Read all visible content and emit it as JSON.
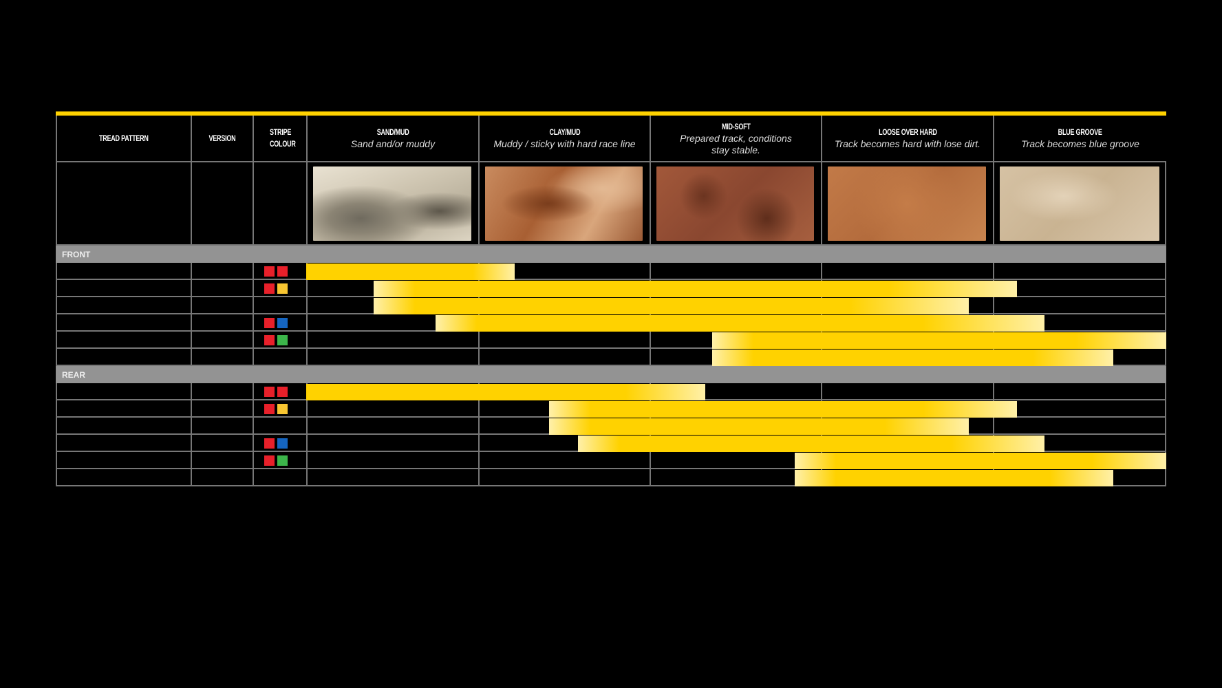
{
  "chart_data": {
    "type": "table",
    "columns": [
      {
        "title": "TREAD PATTERN",
        "subtitle": ""
      },
      {
        "title": "VERSION",
        "subtitle": ""
      },
      {
        "title": "STRIPE COLOUR",
        "subtitle": ""
      },
      {
        "title": "SAND/MUD",
        "subtitle": "Sand and/or muddy"
      },
      {
        "title": "CLAY/MUD",
        "subtitle": "Muddy / sticky with hard race line"
      },
      {
        "title": "MID-SOFT",
        "subtitle": "Prepared track, conditions stay stable."
      },
      {
        "title": "LOOSE OVER HARD",
        "subtitle": "Track becomes hard with lose dirt."
      },
      {
        "title": "BLUE GROOVE",
        "subtitle": "Track becomes blue groove"
      }
    ],
    "terrain_images": [
      "sand",
      "clay-mud",
      "mid-soft-soil",
      "loose-dirt",
      "blue-groove-clay"
    ],
    "range_unit": "terrain columns from SAND/MUD (0) to BLUE GROOVE end (5)",
    "colors": {
      "accent": "#ffd200",
      "band": "#939393",
      "red": "#e8202a",
      "yellow": "#f7c531",
      "blue": "#1565c0",
      "green": "#3cb54a"
    },
    "sections": [
      {
        "label": "FRONT",
        "rows": [
          {
            "stripe": [
              "red",
              "red"
            ],
            "range": [
              0,
              1.21
            ]
          },
          {
            "stripe": [
              "red",
              "yellow"
            ],
            "range": [
              0.39,
              4.13
            ]
          },
          {
            "stripe": [],
            "range": [
              0.39,
              3.85
            ]
          },
          {
            "stripe": [
              "red",
              "blue"
            ],
            "range": [
              0.75,
              4.29
            ]
          },
          {
            "stripe": [
              "red",
              "green"
            ],
            "range": [
              2.36,
              5.0
            ]
          },
          {
            "stripe": [],
            "range": [
              2.36,
              4.69
            ]
          }
        ]
      },
      {
        "label": "REAR",
        "rows": [
          {
            "stripe": [
              "red",
              "red"
            ],
            "range": [
              0,
              2.32
            ]
          },
          {
            "stripe": [
              "red",
              "yellow"
            ],
            "range": [
              1.41,
              4.13
            ]
          },
          {
            "stripe": [],
            "range": [
              1.41,
              3.85
            ]
          },
          {
            "stripe": [
              "red",
              "blue"
            ],
            "range": [
              1.58,
              4.29
            ]
          },
          {
            "stripe": [
              "red",
              "green"
            ],
            "range": [
              2.84,
              5.0
            ]
          },
          {
            "stripe": [],
            "range": [
              2.84,
              4.69
            ]
          }
        ]
      }
    ]
  }
}
